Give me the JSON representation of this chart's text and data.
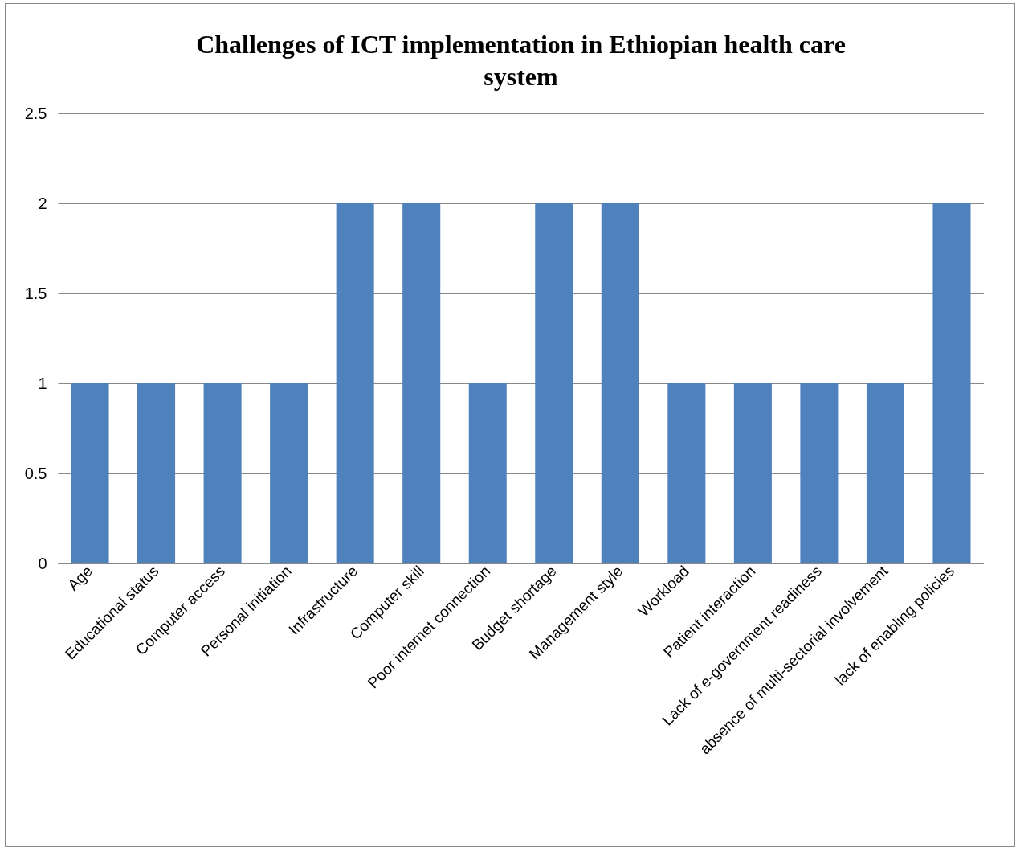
{
  "chart_data": {
    "type": "bar",
    "title": "Challenges of ICT implementation in Ethiopian health care system",
    "categories": [
      "Age",
      "Educational status",
      "Computer access",
      "Personal initiation",
      "Infrastructure",
      "Computer skill",
      "Poor internet connection",
      "Budget shortage",
      "Management style",
      "Workload",
      "Patient interaction",
      "Lack of e-government readiness",
      "absence of multi-sectorial involvement",
      "lack of enabling policies"
    ],
    "values": [
      1,
      1,
      1,
      1,
      2,
      2,
      1,
      2,
      2,
      1,
      1,
      1,
      1,
      2
    ],
    "color": "#4f81bd",
    "ylim": [
      0,
      2.5
    ],
    "yticks": [
      0,
      0.5,
      1,
      1.5,
      2,
      2.5
    ],
    "grid": "y"
  }
}
